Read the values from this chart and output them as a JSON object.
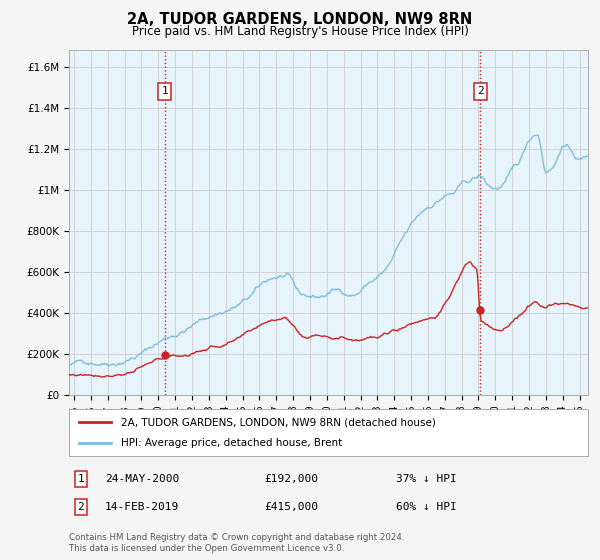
{
  "title": "2A, TUDOR GARDENS, LONDON, NW9 8RN",
  "subtitle": "Price paid vs. HM Land Registry's House Price Index (HPI)",
  "ylabel_ticks": [
    "£0",
    "£200K",
    "£400K",
    "£600K",
    "£800K",
    "£1M",
    "£1.2M",
    "£1.4M",
    "£1.6M"
  ],
  "ylim": [
    0,
    1700000
  ],
  "xlim_start": 1994.7,
  "xlim_end": 2025.5,
  "transaction1_x": 2000.39,
  "transaction1_y": 192000,
  "transaction2_x": 2019.12,
  "transaction2_y": 415000,
  "hpi_color": "#7fbfdd",
  "property_color": "#cc2222",
  "vline_color": "#cc2222",
  "grid_color": "#cccccc",
  "plot_bg_color": "#e8f4fc",
  "background_color": "#f5f5f5",
  "legend_line1": "2A, TUDOR GARDENS, LONDON, NW9 8RN (detached house)",
  "legend_line2": "HPI: Average price, detached house, Brent",
  "annotation1_num": "1",
  "annotation1_date": "24-MAY-2000",
  "annotation1_price": "£192,000",
  "annotation1_note": "37% ↓ HPI",
  "annotation2_num": "2",
  "annotation2_date": "14-FEB-2019",
  "annotation2_price": "£415,000",
  "annotation2_note": "60% ↓ HPI",
  "footer": "Contains HM Land Registry data © Crown copyright and database right 2024.\nThis data is licensed under the Open Government Licence v3.0."
}
